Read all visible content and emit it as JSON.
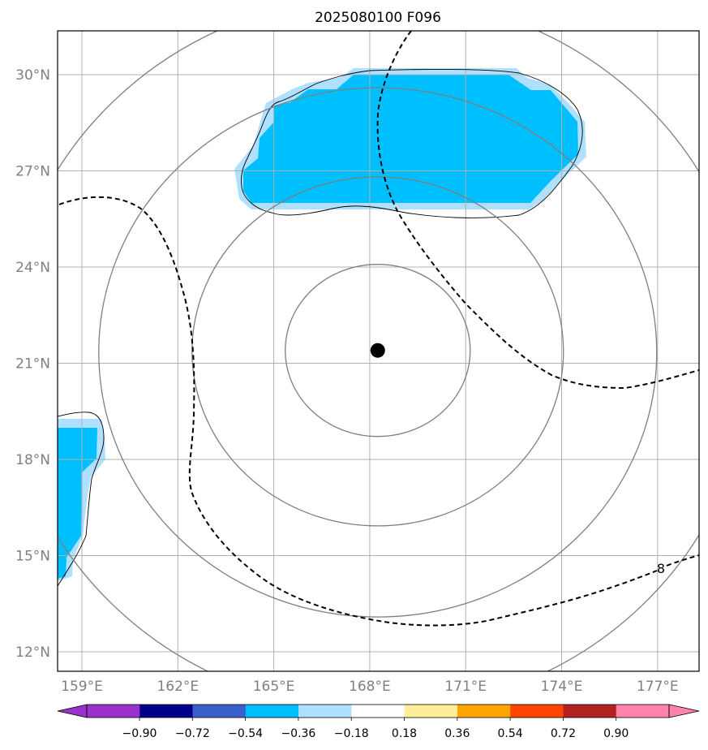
{
  "title": "2025080100 F096",
  "map": {
    "lat_ticks": [
      {
        "value": 30,
        "label": "30°N"
      },
      {
        "value": 27,
        "label": "27°N"
      },
      {
        "value": 24,
        "label": "24°N"
      },
      {
        "value": 21,
        "label": "21°N"
      },
      {
        "value": 18,
        "label": "18°N"
      },
      {
        "value": 15,
        "label": "15°N"
      },
      {
        "value": 12,
        "label": "12°N"
      }
    ],
    "lon_ticks": [
      {
        "value": 159,
        "label": "159°E"
      },
      {
        "value": 162,
        "label": "162°E"
      },
      {
        "value": 165,
        "label": "165°E"
      },
      {
        "value": 168,
        "label": "168°E"
      },
      {
        "value": 171,
        "label": "171°E"
      },
      {
        "value": 174,
        "label": "174°E"
      },
      {
        "value": 177,
        "label": "177°E"
      }
    ],
    "center_marker": {
      "lon": 168.25,
      "lat": 21.4
    },
    "range_ring_count": 4,
    "dashed_contour_label": "8",
    "shading_colors": {
      "fill_dark": "#00bfff",
      "fill_light": "#b0e0ff"
    }
  },
  "colorbar": {
    "labels": [
      "−0.90",
      "−0.72",
      "−0.54",
      "−0.36",
      "−0.18",
      "0.18",
      "0.36",
      "0.54",
      "0.72",
      "0.90"
    ],
    "colors": [
      "#9932cc",
      "#00008b",
      "#3a5fcd",
      "#00bfff",
      "#b0e0ff",
      "#ffffff",
      "#ffee99",
      "#ffa500",
      "#ff4500",
      "#b22222",
      "#ff82ab"
    ]
  }
}
